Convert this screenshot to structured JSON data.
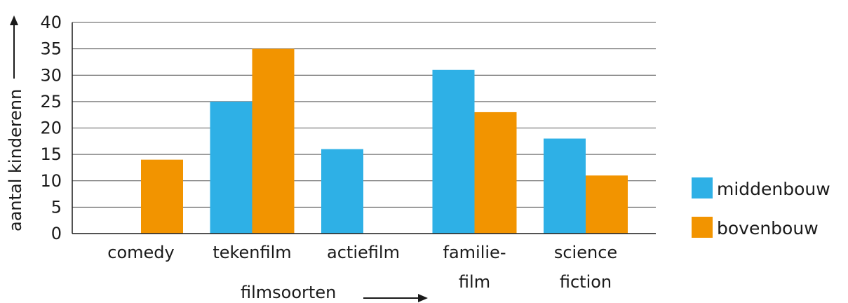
{
  "chart_data": {
    "type": "bar",
    "categories": [
      [
        "comedy"
      ],
      [
        "tekenfilm"
      ],
      [
        "actiefilm"
      ],
      [
        "familie-",
        "film"
      ],
      [
        "science",
        "fiction"
      ]
    ],
    "series": [
      {
        "name": "middenbouw",
        "values": [
          null,
          25,
          16,
          31,
          18
        ],
        "color": "#2eb0e6"
      },
      {
        "name": "bovenbouw",
        "values": [
          14,
          35,
          null,
          23,
          11
        ],
        "color": "#f29400"
      }
    ],
    "xlabel": "filmsoorten",
    "ylabel": "aantal kinderenn",
    "ylim": [
      0,
      40
    ],
    "yticks": [
      0,
      5,
      10,
      15,
      20,
      25,
      30,
      35,
      40
    ],
    "grid": true,
    "legend_position": "right"
  }
}
